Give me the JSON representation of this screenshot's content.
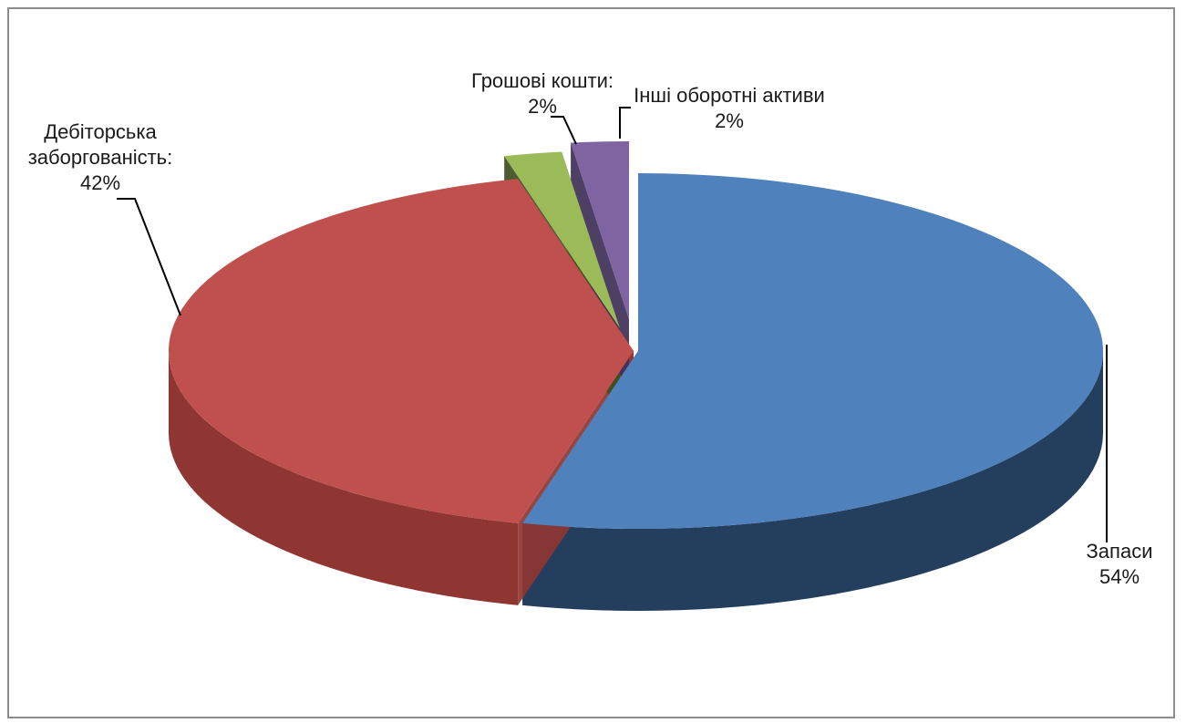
{
  "chart_data": {
    "type": "pie",
    "style": "3d-exploded",
    "legend": "none",
    "slices": [
      {
        "name": "Запаси",
        "value": 54,
        "label_lines": [
          "Запаси",
          "54%"
        ],
        "color": "#4f81bd",
        "side_color": "#243e5e"
      },
      {
        "name": "Дебіторська заборгованість",
        "value": 42,
        "label_lines": [
          "Дебіторська",
          "заборгованість:",
          "42%"
        ],
        "color": "#c0504d",
        "side_color": "#8f3532"
      },
      {
        "name": "Грошові кошти",
        "value": 2,
        "label_lines": [
          "Грошові кошти:",
          "2%"
        ],
        "color": "#9bbb59",
        "side_color": "#3d4f22"
      },
      {
        "name": "Інші оборотні активи",
        "value": 2,
        "label_lines": [
          "Інші оборотні активи",
          "2%"
        ],
        "color": "#8064a2",
        "side_color": "#3f2f57"
      }
    ]
  }
}
